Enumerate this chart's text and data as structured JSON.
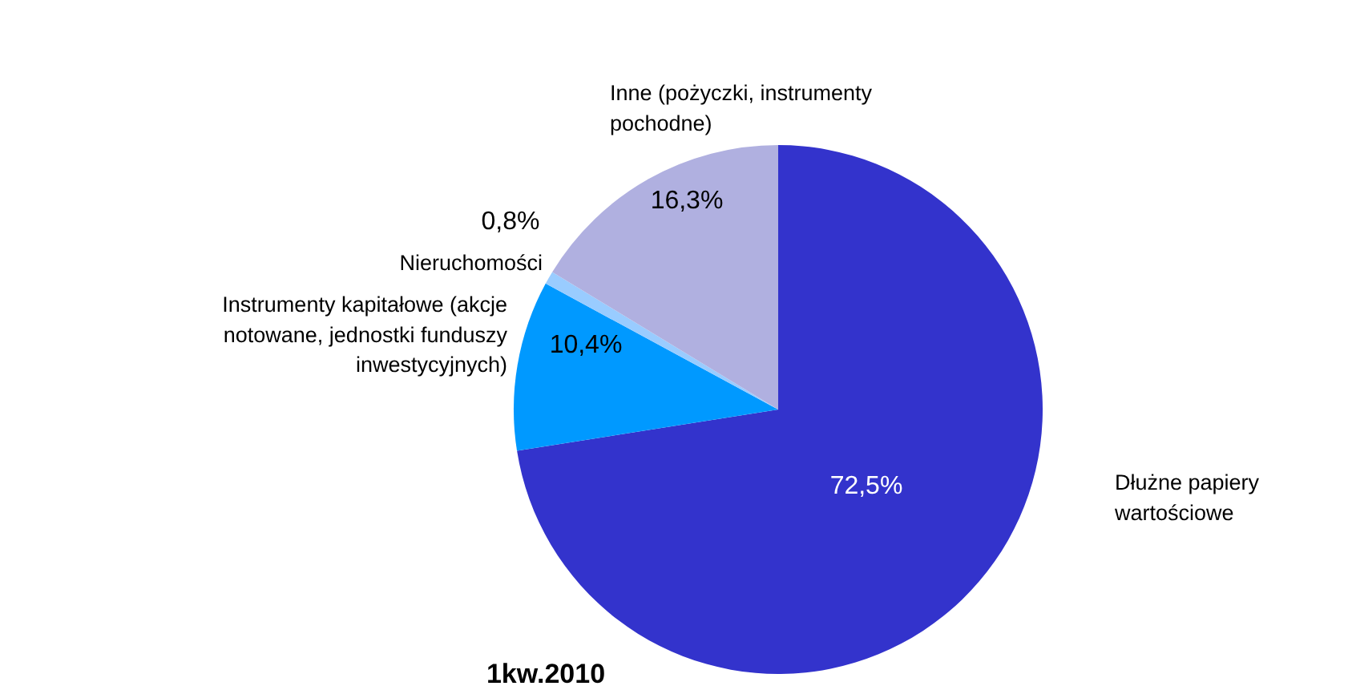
{
  "chart_data": {
    "type": "pie",
    "title": "1kw.2010",
    "categories": [
      "Dłużne papiery wartościowe",
      "Instrumenty kapitałowe (akcje notowane, jednostki funduszy inwestycyjnych)",
      "Nieruchomości",
      "Inne (pożyczki, instrumenty pochodne)"
    ],
    "values": [
      72.5,
      10.4,
      0.8,
      16.3
    ],
    "colors": [
      "#3333cc",
      "#0099ff",
      "#99ccff",
      "#b0b0e0"
    ],
    "value_labels": [
      "72,5%",
      "10,4%",
      "0,8%",
      "16,3%"
    ]
  }
}
